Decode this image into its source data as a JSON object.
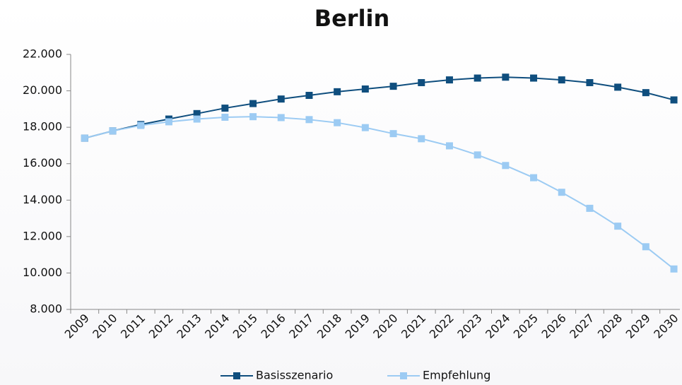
{
  "chart_data": {
    "type": "line",
    "title": "Berlin",
    "categories": [
      "2009",
      "2010",
      "2011",
      "2012",
      "2013",
      "2014",
      "2015",
      "2016",
      "2017",
      "2018",
      "2019",
      "2020",
      "2021",
      "2022",
      "2023",
      "2024",
      "2025",
      "2026",
      "2027",
      "2028",
      "2029",
      "2030"
    ],
    "series": [
      {
        "name": "Basisszenario",
        "color": "#0f4e7e",
        "values": [
          17400,
          17800,
          18150,
          18450,
          18750,
          19050,
          19300,
          19550,
          19750,
          19950,
          20100,
          20250,
          20450,
          20600,
          20700,
          20750,
          20700,
          20600,
          20450,
          20200,
          19900,
          19500
        ]
      },
      {
        "name": "Empfehlung",
        "color": "#9ccbf3",
        "values": [
          17400,
          17800,
          18100,
          18300,
          18450,
          18550,
          18580,
          18530,
          18420,
          18250,
          17980,
          17650,
          17370,
          16980,
          16480,
          15900,
          15230,
          14430,
          13550,
          12570,
          11440,
          10220
        ]
      }
    ],
    "ylim": [
      8000,
      22000
    ],
    "yticks": [
      {
        "value": 8000,
        "label": "8.000"
      },
      {
        "value": 10000,
        "label": "10.000"
      },
      {
        "value": 12000,
        "label": "12.000"
      },
      {
        "value": 14000,
        "label": "14.000"
      },
      {
        "value": 16000,
        "label": "16.000"
      },
      {
        "value": 18000,
        "label": "18.000"
      },
      {
        "value": 20000,
        "label": "20.000"
      },
      {
        "value": 22000,
        "label": "22.000"
      }
    ],
    "grid": false,
    "legend": "bottom"
  }
}
